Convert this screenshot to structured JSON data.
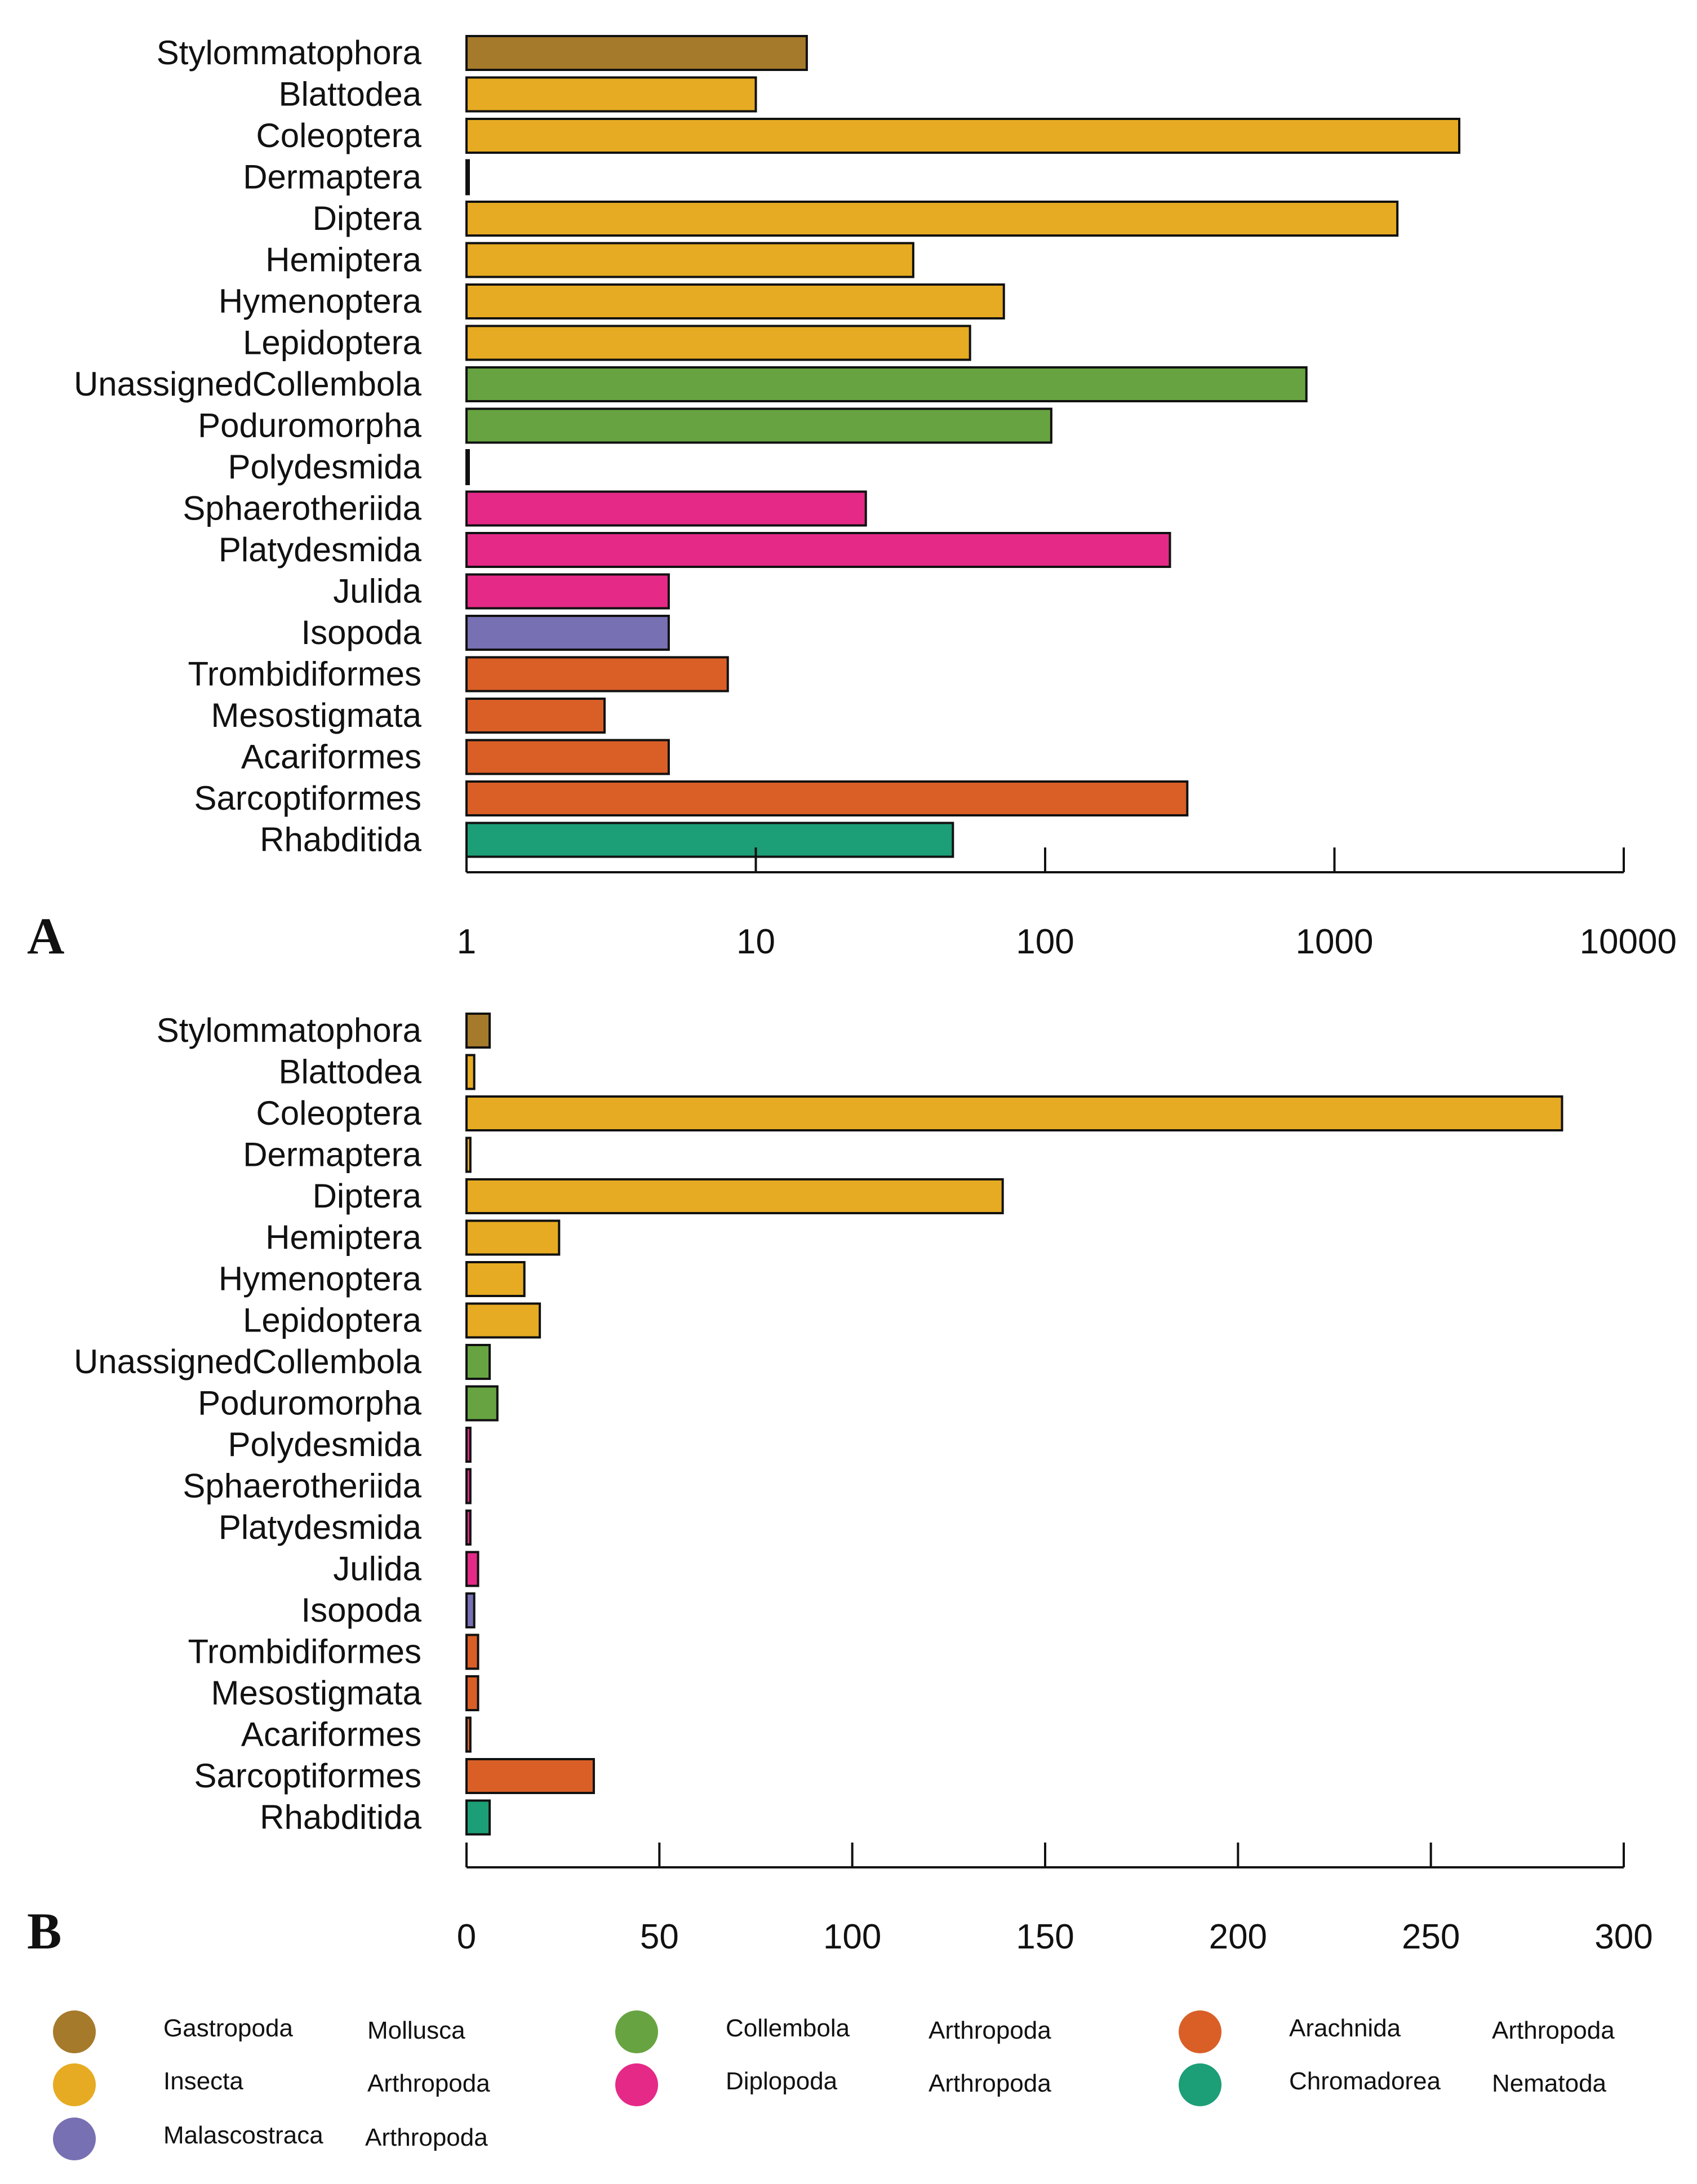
{
  "groups": {
    "Gastropoda": {
      "color": "#A67A2B",
      "class": "Gastropoda",
      "phylum": "Mollusca"
    },
    "Insecta": {
      "color": "#E6AB22",
      "class": "Insecta",
      "phylum": "Arthropoda"
    },
    "Malascostraca": {
      "color": "#7770B3",
      "class": "Malascostraca",
      "phylum": "Arthropoda"
    },
    "Collembola": {
      "color": "#67A441",
      "class": "Collembola",
      "phylum": "Arthropoda"
    },
    "Diplopoda": {
      "color": "#E52987",
      "class": "Diplopoda",
      "phylum": "Arthropoda"
    },
    "Arachnida": {
      "color": "#D95F27",
      "class": "Arachnida",
      "phylum": "Arthropoda"
    },
    "Chromadorea": {
      "color": "#1C9E77",
      "class": "Chromadorea",
      "phylum": "Nematoda"
    }
  },
  "legend": [
    {
      "key": "Gastropoda",
      "class": "Gastropoda",
      "phylum": "Mollusca"
    },
    {
      "key": "Insecta",
      "class": "Insecta",
      "phylum": "Arthropoda"
    },
    {
      "key": "Malascostraca",
      "class": "Malascostraca",
      "phylum": "Arthropoda"
    },
    {
      "key": "Collembola",
      "class": "Collembola",
      "phylum": "Arthropoda"
    },
    {
      "key": "Diplopoda",
      "class": "Diplopoda",
      "phylum": "Arthropoda"
    },
    {
      "key": "Arachnida",
      "class": "Arachnida",
      "phylum": "Arthropoda"
    },
    {
      "key": "Chromadorea",
      "class": "Chromadorea",
      "phylum": "Nematoda"
    }
  ],
  "chart_data": [
    {
      "type": "bar",
      "orientation": "horizontal",
      "panel_label": "A",
      "xscale": "log",
      "xlim": [
        1,
        10000
      ],
      "xticks": [
        1,
        10,
        100,
        1000,
        10000
      ],
      "xtick_labels": [
        "1",
        "10",
        "100",
        "1000",
        "10000"
      ],
      "categories": [
        "Stylommatophora",
        "Blattodea",
        "Coleoptera",
        "Dermaptera",
        "Diptera",
        "Hemiptera",
        "Hymenoptera",
        "Lepidoptera",
        "UnassignedCollembola",
        "Poduromorpha",
        "Polydesmida",
        "Sphaerotheriida",
        "Platydesmida",
        "Julida",
        "Isopoda",
        "Trombidiformes",
        "Mesostigmata",
        "Acariformes",
        "Sarcoptiformes",
        "Rhabditida"
      ],
      "groups": [
        "Gastropoda",
        "Insecta",
        "Insecta",
        "Insecta",
        "Insecta",
        "Insecta",
        "Insecta",
        "Insecta",
        "Collembola",
        "Collembola",
        "Diplopoda",
        "Diplopoda",
        "Diplopoda",
        "Diplopoda",
        "Malascostraca",
        "Arachnida",
        "Arachnida",
        "Arachnida",
        "Arachnida",
        "Chromadorea"
      ],
      "values": [
        15,
        10,
        2700,
        1,
        1650,
        35,
        72,
        55,
        800,
        105,
        1,
        24,
        270,
        5,
        5,
        8,
        3,
        5,
        310,
        48
      ]
    },
    {
      "type": "bar",
      "orientation": "horizontal",
      "panel_label": "B",
      "xscale": "linear",
      "xlim": [
        0,
        300
      ],
      "xticks": [
        0,
        50,
        100,
        150,
        200,
        250,
        300
      ],
      "xtick_labels": [
        "0",
        "50",
        "100",
        "150",
        "200",
        "250",
        "300"
      ],
      "categories": [
        "Stylommatophora",
        "Blattodea",
        "Coleoptera",
        "Dermaptera",
        "Diptera",
        "Hemiptera",
        "Hymenoptera",
        "Lepidoptera",
        "UnassignedCollembola",
        "Poduromorpha",
        "Polydesmida",
        "Sphaerotheriida",
        "Platydesmida",
        "Julida",
        "Isopoda",
        "Trombidiformes",
        "Mesostigmata",
        "Acariformes",
        "Sarcoptiformes",
        "Rhabditida"
      ],
      "groups": [
        "Gastropoda",
        "Insecta",
        "Insecta",
        "Insecta",
        "Insecta",
        "Insecta",
        "Insecta",
        "Insecta",
        "Collembola",
        "Collembola",
        "Diplopoda",
        "Diplopoda",
        "Diplopoda",
        "Diplopoda",
        "Malascostraca",
        "Arachnida",
        "Arachnida",
        "Arachnida",
        "Arachnida",
        "Chromadorea"
      ],
      "values": [
        6,
        2,
        284,
        1,
        139,
        24,
        15,
        19,
        6,
        8,
        1,
        1,
        1,
        3,
        2,
        3,
        3,
        1,
        33,
        6
      ]
    }
  ]
}
